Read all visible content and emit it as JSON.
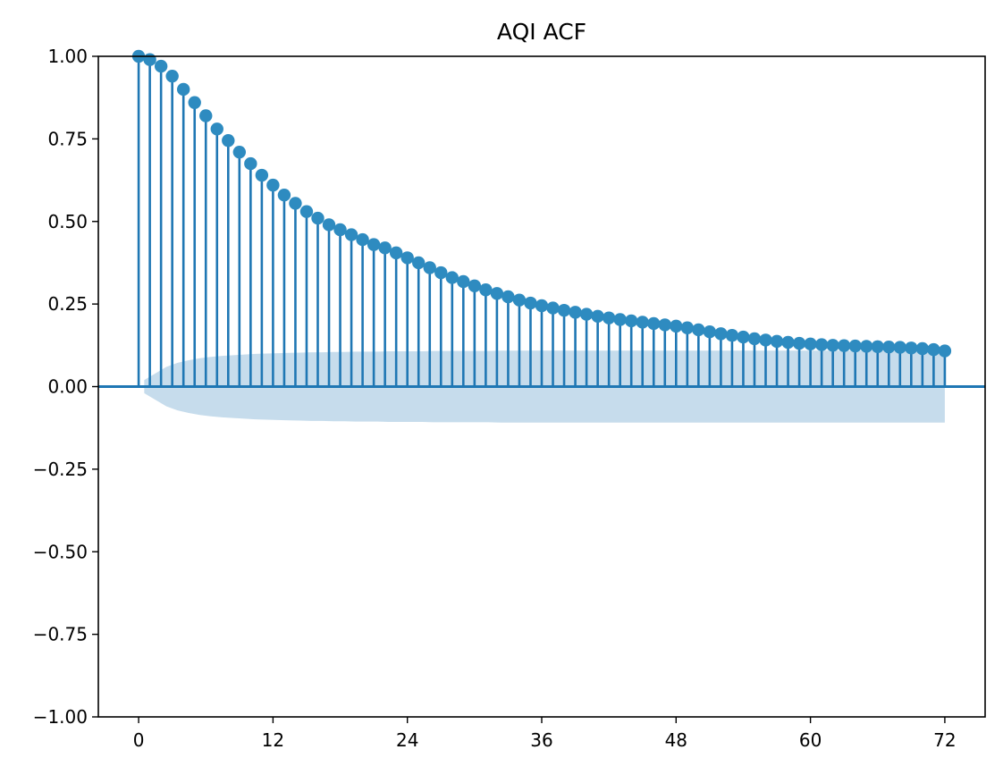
{
  "chart_data": {
    "type": "stem",
    "title": "AQI ACF",
    "xlabel": "",
    "ylabel": "",
    "xlim": [
      -3.6,
      75.6
    ],
    "ylim": [
      -1.0,
      1.0
    ],
    "x_ticks": [
      0,
      12,
      24,
      36,
      48,
      60,
      72
    ],
    "x_tick_labels": [
      "0",
      "12",
      "24",
      "36",
      "48",
      "60",
      "72"
    ],
    "y_ticks": [
      1.0,
      0.75,
      0.5,
      0.25,
      0.0,
      -0.25,
      -0.5,
      -0.75,
      -1.0
    ],
    "y_tick_labels": [
      "1.00",
      "0.75",
      "0.50",
      "0.25",
      "0.00",
      "−0.25",
      "−0.50",
      "−0.75",
      "−1.00"
    ],
    "grid": false,
    "colors": {
      "stem": "#1f77b4",
      "marker": "#2e8bc0",
      "confidence_band": "#c6dcec",
      "zero_line": "#1f77b4"
    },
    "lags": [
      0,
      1,
      2,
      3,
      4,
      5,
      6,
      7,
      8,
      9,
      10,
      11,
      12,
      13,
      14,
      15,
      16,
      17,
      18,
      19,
      20,
      21,
      22,
      23,
      24,
      25,
      26,
      27,
      28,
      29,
      30,
      31,
      32,
      33,
      34,
      35,
      36,
      37,
      38,
      39,
      40,
      41,
      42,
      43,
      44,
      45,
      46,
      47,
      48,
      49,
      50,
      51,
      52,
      53,
      54,
      55,
      56,
      57,
      58,
      59,
      60,
      61,
      62,
      63,
      64,
      65,
      66,
      67,
      68,
      69,
      70,
      71,
      72
    ],
    "acf": [
      1.0,
      0.99,
      0.97,
      0.94,
      0.9,
      0.86,
      0.82,
      0.78,
      0.745,
      0.71,
      0.675,
      0.64,
      0.61,
      0.58,
      0.555,
      0.53,
      0.51,
      0.49,
      0.475,
      0.46,
      0.445,
      0.43,
      0.42,
      0.405,
      0.39,
      0.375,
      0.36,
      0.345,
      0.33,
      0.318,
      0.305,
      0.293,
      0.282,
      0.272,
      0.262,
      0.253,
      0.245,
      0.238,
      0.231,
      0.225,
      0.219,
      0.213,
      0.208,
      0.203,
      0.199,
      0.195,
      0.191,
      0.187,
      0.183,
      0.178,
      0.172,
      0.166,
      0.16,
      0.155,
      0.15,
      0.145,
      0.141,
      0.137,
      0.134,
      0.131,
      0.129,
      0.127,
      0.125,
      0.124,
      0.123,
      0.122,
      0.121,
      0.12,
      0.119,
      0.117,
      0.115,
      0.112,
      0.108
    ],
    "confidence_band": {
      "x_start": 0.5,
      "x_end": 72,
      "upper": [
        0.02,
        0.04,
        0.06,
        0.072,
        0.08,
        0.086,
        0.09,
        0.093,
        0.095,
        0.097,
        0.099,
        0.1,
        0.101,
        0.102,
        0.103,
        0.104,
        0.104,
        0.105,
        0.105,
        0.106,
        0.106,
        0.106,
        0.107,
        0.107,
        0.107,
        0.107,
        0.108,
        0.108,
        0.108,
        0.108,
        0.108,
        0.108,
        0.109,
        0.109,
        0.109,
        0.109,
        0.109,
        0.109,
        0.109,
        0.109,
        0.109,
        0.109,
        0.109,
        0.109,
        0.109,
        0.109,
        0.109,
        0.109,
        0.109,
        0.109,
        0.109,
        0.109,
        0.109,
        0.109,
        0.109,
        0.109,
        0.109,
        0.109,
        0.109,
        0.109,
        0.109,
        0.109,
        0.109,
        0.109,
        0.109,
        0.109,
        0.109,
        0.109,
        0.109,
        0.109,
        0.109,
        0.109,
        0.109
      ]
    }
  }
}
